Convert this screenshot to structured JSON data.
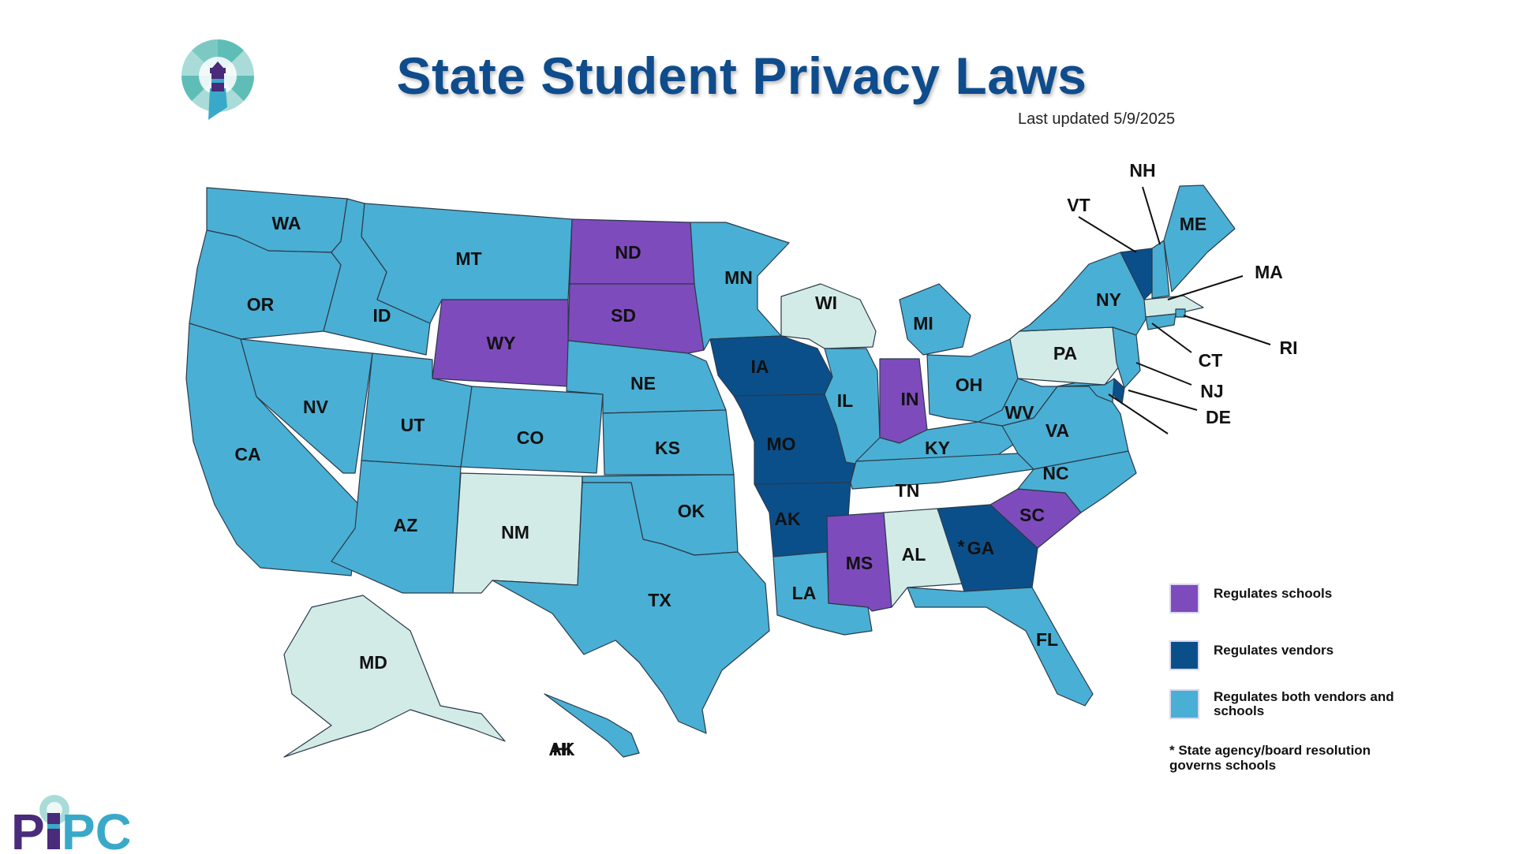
{
  "header": {
    "title": "State Student Privacy Laws",
    "updated": "Last updated 5/9/2025"
  },
  "logo_text": "PIPC",
  "categories": {
    "schools": {
      "label": "Regulates schools",
      "color": "#7e4bbc"
    },
    "vendors": {
      "label": "Regulates vendors",
      "color": "#0b4f8a"
    },
    "both": {
      "label": "Regulates both vendors and schools",
      "color": "#4aafd4"
    },
    "none": {
      "label": "",
      "color": "#d3ebe7"
    }
  },
  "footnote": "* State agency/board resolution governs schools",
  "states": [
    {
      "code": "WA",
      "category": "both"
    },
    {
      "code": "OR",
      "category": "both"
    },
    {
      "code": "CA",
      "category": "both"
    },
    {
      "code": "ID",
      "category": "both"
    },
    {
      "code": "NV",
      "category": "both"
    },
    {
      "code": "MT",
      "category": "both"
    },
    {
      "code": "WY",
      "category": "schools"
    },
    {
      "code": "UT",
      "category": "both"
    },
    {
      "code": "AZ",
      "category": "both"
    },
    {
      "code": "CO",
      "category": "both"
    },
    {
      "code": "NM",
      "category": "none"
    },
    {
      "code": "ND",
      "category": "schools"
    },
    {
      "code": "SD",
      "category": "schools"
    },
    {
      "code": "NE",
      "category": "both"
    },
    {
      "code": "KS",
      "category": "both"
    },
    {
      "code": "OK",
      "category": "both"
    },
    {
      "code": "TX",
      "category": "both"
    },
    {
      "code": "MN",
      "category": "both"
    },
    {
      "code": "IA",
      "category": "vendors"
    },
    {
      "code": "MO",
      "category": "vendors"
    },
    {
      "code": "AK",
      "category": "vendors"
    },
    {
      "code": "LA",
      "category": "both"
    },
    {
      "code": "WI",
      "category": "none"
    },
    {
      "code": "IL",
      "category": "both"
    },
    {
      "code": "MI",
      "category": "both"
    },
    {
      "code": "IN",
      "category": "schools"
    },
    {
      "code": "OH",
      "category": "both"
    },
    {
      "code": "KY",
      "category": "both"
    },
    {
      "code": "TN",
      "category": "both"
    },
    {
      "code": "MS",
      "category": "schools"
    },
    {
      "code": "AL",
      "category": "none",
      "mark": "*"
    },
    {
      "code": "GA",
      "category": "vendors"
    },
    {
      "code": "FL",
      "category": "both"
    },
    {
      "code": "SC",
      "category": "schools"
    },
    {
      "code": "NC",
      "category": "both"
    },
    {
      "code": "VA",
      "category": "both"
    },
    {
      "code": "WV",
      "category": "both"
    },
    {
      "code": "PA",
      "category": "none"
    },
    {
      "code": "NY",
      "category": "both"
    },
    {
      "code": "VT",
      "category": "vendors"
    },
    {
      "code": "NH",
      "category": "both"
    },
    {
      "code": "ME",
      "category": "both"
    },
    {
      "code": "MA",
      "category": "none"
    },
    {
      "code": "RI",
      "category": "both"
    },
    {
      "code": "CT",
      "category": "both"
    },
    {
      "code": "NJ",
      "category": "both"
    },
    {
      "code": "DE",
      "category": "vendors"
    },
    {
      "code": "MD",
      "category": "both"
    },
    {
      "code": "AK",
      "category": "none"
    },
    {
      "code": "HI",
      "category": "both"
    }
  ]
}
